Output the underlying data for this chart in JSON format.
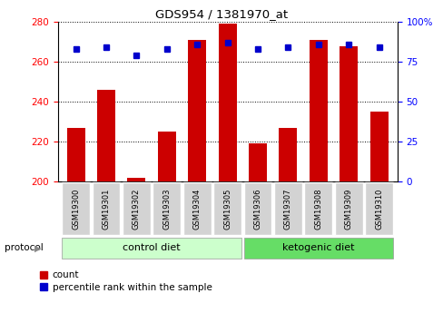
{
  "title": "GDS954 / 1381970_at",
  "samples": [
    "GSM19300",
    "GSM19301",
    "GSM19302",
    "GSM19303",
    "GSM19304",
    "GSM19305",
    "GSM19306",
    "GSM19307",
    "GSM19308",
    "GSM19309",
    "GSM19310"
  ],
  "count_values": [
    227,
    246,
    202,
    225,
    271,
    279,
    219,
    227,
    271,
    268,
    235
  ],
  "percentile_values": [
    83,
    84,
    79,
    83,
    86,
    87,
    83,
    84,
    86,
    86,
    84
  ],
  "ylim_left": [
    200,
    280
  ],
  "ylim_right": [
    0,
    100
  ],
  "yticks_left": [
    200,
    220,
    240,
    260,
    280
  ],
  "yticks_right": [
    0,
    25,
    50,
    75,
    100
  ],
  "bar_color": "#cc0000",
  "marker_color": "#0000cc",
  "control_diet_indices": [
    0,
    1,
    2,
    3,
    4,
    5
  ],
  "ketogenic_diet_indices": [
    6,
    7,
    8,
    9,
    10
  ],
  "control_label": "control diet",
  "ketogenic_label": "ketogenic diet",
  "protocol_label": "protocol",
  "legend_count": "count",
  "legend_percentile": "percentile rank within the sample",
  "bar_width": 0.6,
  "sample_bg_color": "#d3d3d3",
  "control_bg": "#ccffcc",
  "ketogenic_bg": "#66dd66"
}
